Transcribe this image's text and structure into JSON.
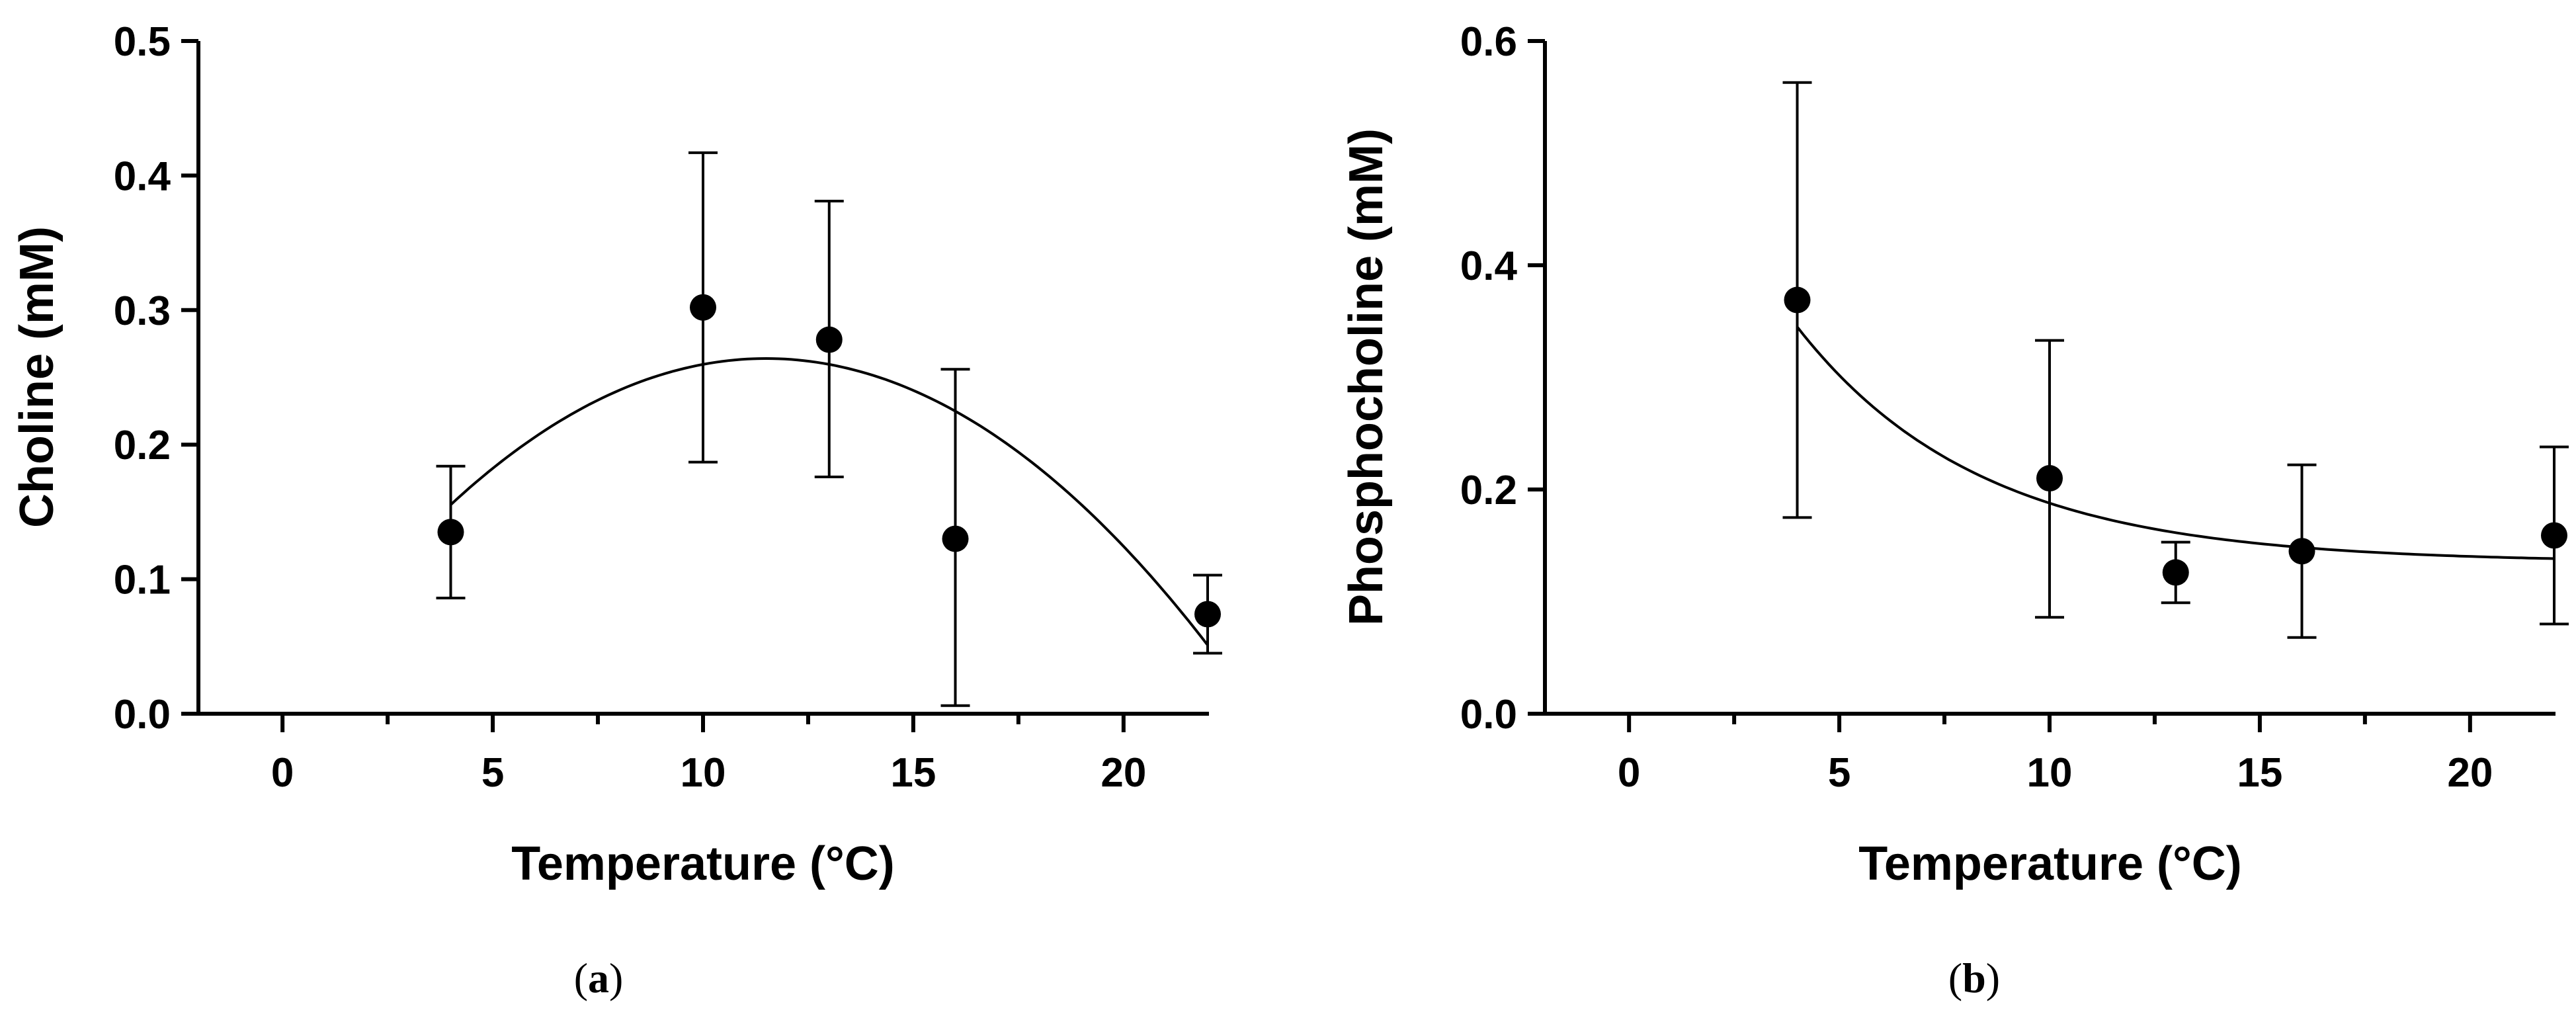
{
  "chart_data": [
    {
      "type": "scatter",
      "panel_label": "a",
      "title": "",
      "xlabel": "Temperature (°C)",
      "ylabel": "Choline (mM)",
      "xlim": [
        -2,
        22
      ],
      "ylim": [
        0,
        0.5
      ],
      "xticks": [
        0,
        5,
        10,
        15,
        20
      ],
      "xtick_labels": [
        "0",
        "5",
        "10",
        "15",
        "20"
      ],
      "minor_xticks": [
        2.5,
        7.5,
        12.5,
        17.5
      ],
      "yticks": [
        0,
        0.1,
        0.2,
        0.3,
        0.4,
        0.5
      ],
      "ytick_labels": [
        "0.0",
        "0.1",
        "0.2",
        "0.3",
        "0.4",
        "0.5"
      ],
      "grid": false,
      "points": [
        {
          "x": 4,
          "y": 0.135,
          "err_low": 0.086,
          "err_high": 0.184
        },
        {
          "x": 10,
          "y": 0.302,
          "err_low": 0.187,
          "err_high": 0.417
        },
        {
          "x": 13,
          "y": 0.278,
          "err_low": 0.176,
          "err_high": 0.381
        },
        {
          "x": 16,
          "y": 0.13,
          "err_low": 0.006,
          "err_high": 0.256
        },
        {
          "x": 22,
          "y": 0.074,
          "err_low": 0.045,
          "err_high": 0.103
        }
      ],
      "fit": {
        "model": "quadratic",
        "x_range": [
          4,
          22
        ],
        "vertex_x": 11.5,
        "vertex_y": 0.264,
        "curvature": -0.001932
      }
    },
    {
      "type": "scatter",
      "panel_label": "b",
      "title": "",
      "xlabel": "Temperature (°C)",
      "ylabel": "Phosphocholine (mM)",
      "xlim": [
        -2,
        22
      ],
      "ylim": [
        0,
        0.6
      ],
      "xticks": [
        0,
        5,
        10,
        15,
        20
      ],
      "xtick_labels": [
        "0",
        "5",
        "10",
        "15",
        "20"
      ],
      "minor_xticks": [
        2.5,
        7.5,
        12.5,
        17.5
      ],
      "yticks": [
        0,
        0.2,
        0.4,
        0.6
      ],
      "ytick_labels": [
        "0.0",
        "0.2",
        "0.4",
        "0.6"
      ],
      "grid": false,
      "points": [
        {
          "x": 4,
          "y": 0.369,
          "err_low": 0.175,
          "err_high": 0.563
        },
        {
          "x": 10,
          "y": 0.21,
          "err_low": 0.086,
          "err_high": 0.333
        },
        {
          "x": 13,
          "y": 0.126,
          "err_low": 0.099,
          "err_high": 0.153
        },
        {
          "x": 16,
          "y": 0.145,
          "err_low": 0.068,
          "err_high": 0.222
        },
        {
          "x": 22,
          "y": 0.159,
          "err_low": 0.08,
          "err_high": 0.238
        }
      ],
      "fit": {
        "model": "exponential_decay",
        "x_range": [
          4,
          22
        ],
        "plateau": 0.135,
        "y0": 0.345,
        "k": 0.23
      }
    }
  ]
}
